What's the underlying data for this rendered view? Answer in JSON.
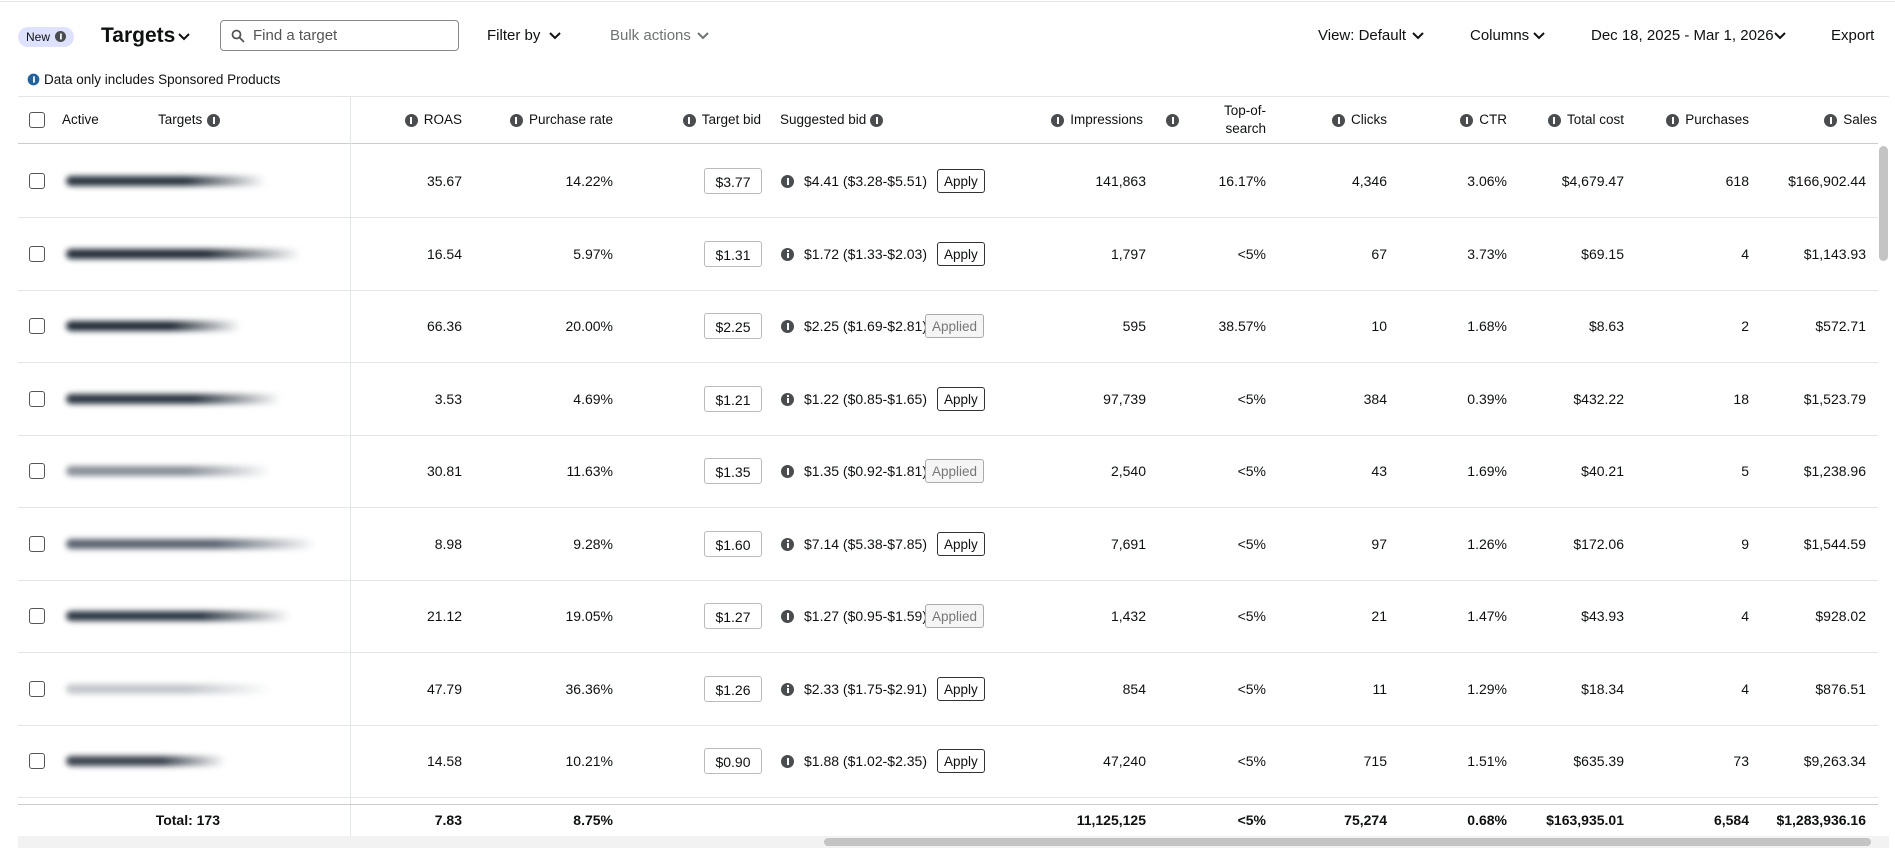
{
  "toolbar": {
    "badge": "New",
    "title": "Targets",
    "search_placeholder": "Find a target",
    "filter": "Filter by",
    "bulk": "Bulk actions",
    "view": "View: Default",
    "columns": "Columns",
    "date_range": "Dec 18, 2025 - Mar 1, 2026",
    "export": "Export"
  },
  "note": "Data only includes Sponsored Products",
  "table": {
    "headers": [
      "Active",
      "Targets",
      "ROAS",
      "Purchase rate",
      "Target bid",
      "Suggested bid",
      "Impressions",
      "Top-of-search",
      "Clicks",
      "CTR",
      "Total cost",
      "Purchases",
      "Sales"
    ],
    "rows": [
      [
        "35.67",
        "14.22%",
        "$3.77",
        "$4.41 ($3.28-$5.51)",
        "Apply",
        "141,863",
        "16.17%",
        "4,346",
        "3.06%",
        "$4,679.47",
        "618",
        "$166,902.44"
      ],
      [
        "16.54",
        "5.97%",
        "$1.31",
        "$1.72 ($1.33-$2.03)",
        "Apply",
        "1,797",
        "<5%",
        "67",
        "3.73%",
        "$69.15",
        "4",
        "$1,143.93"
      ],
      [
        "66.36",
        "20.00%",
        "$2.25",
        "$2.25 ($1.69-$2.81)",
        "Applied",
        "595",
        "38.57%",
        "10",
        "1.68%",
        "$8.63",
        "2",
        "$572.71"
      ],
      [
        "3.53",
        "4.69%",
        "$1.21",
        "$1.22 ($0.85-$1.65)",
        "Apply",
        "97,739",
        "<5%",
        "384",
        "0.39%",
        "$432.22",
        "18",
        "$1,523.79"
      ],
      [
        "30.81",
        "11.63%",
        "$1.35",
        "$1.35 ($0.92-$1.81)",
        "Applied",
        "2,540",
        "<5%",
        "43",
        "1.69%",
        "$40.21",
        "5",
        "$1,238.96"
      ],
      [
        "8.98",
        "9.28%",
        "$1.60",
        "$7.14 ($5.38-$7.85)",
        "Apply",
        "7,691",
        "<5%",
        "97",
        "1.26%",
        "$172.06",
        "9",
        "$1,544.59"
      ],
      [
        "21.12",
        "19.05%",
        "$1.27",
        "$1.27 ($0.95-$1.59)",
        "Applied",
        "1,432",
        "<5%",
        "21",
        "1.47%",
        "$43.93",
        "4",
        "$928.02"
      ],
      [
        "47.79",
        "36.36%",
        "$1.26",
        "$2.33 ($1.75-$2.91)",
        "Apply",
        "854",
        "<5%",
        "11",
        "1.29%",
        "$18.34",
        "4",
        "$876.51"
      ],
      [
        "14.58",
        "10.21%",
        "$0.90",
        "$1.88 ($1.02-$2.35)",
        "Apply",
        "47,240",
        "<5%",
        "715",
        "1.51%",
        "$635.39",
        "73",
        "$9,263.34"
      ]
    ],
    "total": [
      "Total: 173",
      "7.83",
      "8.75%",
      "11,125,125",
      "<5%",
      "75,274",
      "0.68%",
      "$163,935.01",
      "6,584",
      "$1,283,936.16"
    ]
  }
}
